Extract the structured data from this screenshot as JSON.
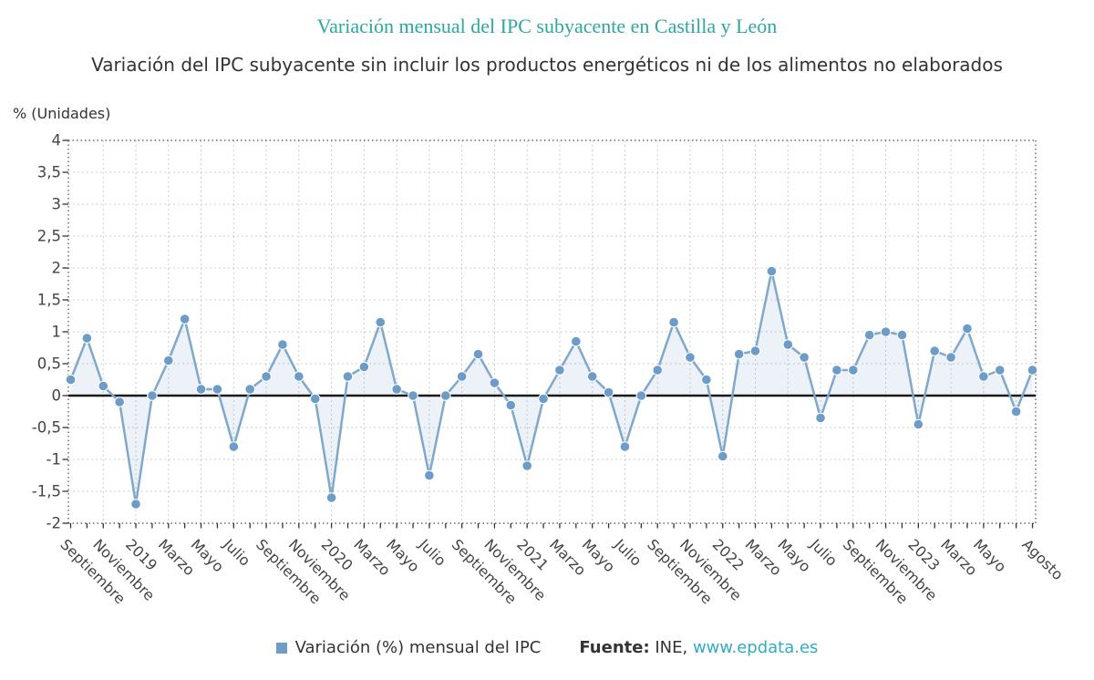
{
  "header": {
    "title": "Variación mensual del IPC subyacente en Castilla y León",
    "subtitle": "Variación del IPC subyacente sin incluir los productos energéticos ni de los alimentos no elaborados"
  },
  "footer": {
    "source_label": "Fuente:",
    "source_agency": " INE, ",
    "source_link": "www.epdata.es"
  },
  "chart_data": {
    "type": "line",
    "title": "Variación mensual del IPC subyacente en Castilla y León",
    "unit_label": "% (Unidades)",
    "ylabel": "% (Unidades)",
    "xlabel": "",
    "ylim": [
      -2,
      4
    ],
    "ytick_step": 0.5,
    "ytick_labels": [
      "4",
      "3,5",
      "3",
      "2,5",
      "2",
      "1,5",
      "1",
      "0,5",
      "0",
      "-0,5",
      "-1",
      "-1,5",
      "-2"
    ],
    "grid": true,
    "legend_position": "bottom",
    "x": [
      "Sep 2018",
      "Oct 2018",
      "Nov 2018",
      "Dic 2018",
      "Ene 2019",
      "Feb 2019",
      "Mar 2019",
      "Abr 2019",
      "May 2019",
      "Jun 2019",
      "Jul 2019",
      "Ago 2019",
      "Sep 2019",
      "Oct 2019",
      "Nov 2019",
      "Dic 2019",
      "Ene 2020",
      "Feb 2020",
      "Mar 2020",
      "Abr 2020",
      "May 2020",
      "Jun 2020",
      "Jul 2020",
      "Ago 2020",
      "Sep 2020",
      "Oct 2020",
      "Nov 2020",
      "Dic 2020",
      "Ene 2021",
      "Feb 2021",
      "Mar 2021",
      "Abr 2021",
      "May 2021",
      "Jun 2021",
      "Jul 2021",
      "Ago 2021",
      "Sep 2021",
      "Oct 2021",
      "Nov 2021",
      "Dic 2021",
      "Ene 2022",
      "Feb 2022",
      "Mar 2022",
      "Abr 2022",
      "May 2022",
      "Jun 2022",
      "Jul 2022",
      "Ago 2022",
      "Sep 2022",
      "Oct 2022",
      "Nov 2022",
      "Dic 2022",
      "Ene 2023",
      "Feb 2023",
      "Mar 2023",
      "Abr 2023",
      "May 2023",
      "Jun 2023",
      "Jul 2023",
      "Ago 2023"
    ],
    "x_tick_labels": [
      [
        0,
        "Septiembre"
      ],
      [
        2,
        "Noviembre"
      ],
      [
        4,
        "2019"
      ],
      [
        6,
        "Marzo"
      ],
      [
        8,
        "Mayo"
      ],
      [
        10,
        "Julio"
      ],
      [
        12,
        "Septiembre"
      ],
      [
        14,
        "Noviembre"
      ],
      [
        16,
        "2020"
      ],
      [
        18,
        "Marzo"
      ],
      [
        20,
        "Mayo"
      ],
      [
        22,
        "Julio"
      ],
      [
        24,
        "Septiembre"
      ],
      [
        26,
        "Noviembre"
      ],
      [
        28,
        "2021"
      ],
      [
        30,
        "Marzo"
      ],
      [
        32,
        "Mayo"
      ],
      [
        34,
        "Julio"
      ],
      [
        36,
        "Septiembre"
      ],
      [
        38,
        "Noviembre"
      ],
      [
        40,
        "2022"
      ],
      [
        42,
        "Marzo"
      ],
      [
        44,
        "Mayo"
      ],
      [
        46,
        "Julio"
      ],
      [
        48,
        "Septiembre"
      ],
      [
        50,
        "Noviembre"
      ],
      [
        52,
        "2023"
      ],
      [
        54,
        "Marzo"
      ],
      [
        56,
        "Mayo"
      ],
      [
        59,
        "Agosto"
      ]
    ],
    "series": [
      {
        "name": "Variación (%) mensual del IPC",
        "values": [
          0.25,
          0.9,
          0.15,
          -0.1,
          -1.7,
          0.0,
          0.55,
          1.2,
          0.1,
          0.1,
          -0.8,
          0.1,
          0.3,
          0.8,
          0.3,
          -0.05,
          -1.6,
          0.3,
          0.45,
          1.15,
          0.1,
          0.0,
          -1.25,
          0.0,
          0.3,
          0.65,
          0.2,
          -0.15,
          -1.1,
          -0.05,
          0.4,
          0.85,
          0.3,
          0.05,
          -0.8,
          0.0,
          0.4,
          1.15,
          0.6,
          0.25,
          -0.95,
          0.65,
          0.7,
          1.95,
          0.8,
          0.6,
          -0.35,
          0.4,
          0.4,
          0.95,
          1.0,
          0.95,
          -0.45,
          0.7,
          0.6,
          1.05,
          0.3,
          0.4,
          -0.25,
          0.4
        ]
      }
    ],
    "colors": {
      "title": "#2ea6a1",
      "line": "#7fa8cb",
      "marker": "#6d9cc9",
      "area": "rgba(109,156,201,0.13)",
      "zero_line": "#1a1a1a",
      "grid": "#cccccc",
      "axis": "#4a4a4a",
      "tick_text": "#444444",
      "link": "#35a9c5"
    }
  }
}
